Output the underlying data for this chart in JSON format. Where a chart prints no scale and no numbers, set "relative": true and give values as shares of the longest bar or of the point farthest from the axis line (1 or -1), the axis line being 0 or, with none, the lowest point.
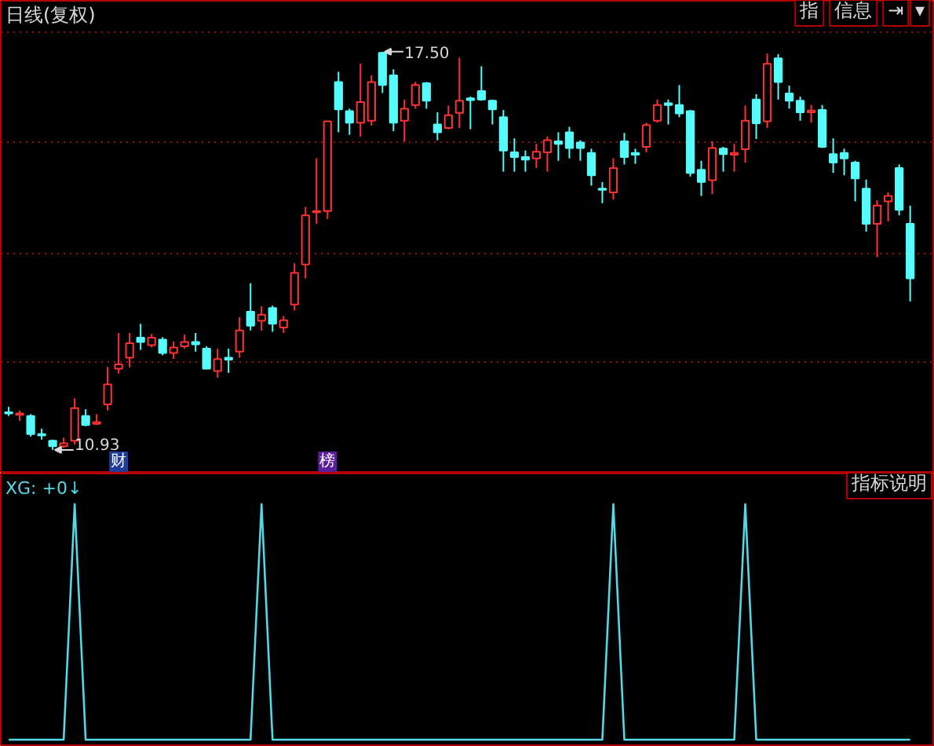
{
  "chart_data": [
    {
      "type": "candlestick",
      "title": "日线(复权)",
      "categories": [
        null,
        null,
        null,
        null,
        null,
        null,
        null,
        null,
        null,
        null,
        "财",
        null,
        null,
        null,
        null,
        null,
        null,
        null,
        null,
        null,
        null,
        null,
        null,
        null,
        null,
        null,
        null,
        null,
        null,
        "榜",
        null,
        null,
        null,
        null,
        null,
        null,
        null,
        null,
        null,
        null,
        null,
        null,
        null,
        null,
        null,
        null,
        null,
        null,
        null,
        null,
        null,
        null,
        null,
        null,
        null,
        null,
        null,
        null,
        null,
        null,
        null,
        null,
        null,
        null,
        null,
        null,
        null,
        null,
        null,
        null,
        null,
        null,
        null,
        null,
        null,
        null,
        null,
        null,
        null,
        null,
        null,
        null,
        null
      ],
      "ohlc": [
        [
          11.55,
          11.64,
          11.49,
          11.53
        ],
        [
          11.51,
          11.58,
          11.41,
          11.53
        ],
        [
          11.49,
          11.52,
          11.15,
          11.19
        ],
        [
          11.19,
          11.28,
          11.1,
          11.17
        ],
        [
          11.08,
          11.1,
          10.93,
          10.99
        ],
        [
          10.99,
          11.13,
          10.96,
          11.04
        ],
        [
          11.08,
          11.78,
          11.02,
          11.62
        ],
        [
          11.49,
          11.6,
          11.32,
          11.34
        ],
        [
          11.36,
          11.52,
          11.34,
          11.39
        ],
        [
          11.68,
          12.3,
          11.58,
          12.01
        ],
        [
          12.27,
          12.86,
          12.19,
          12.34
        ],
        [
          12.45,
          12.86,
          12.29,
          12.69
        ],
        [
          12.78,
          13.01,
          12.58,
          12.71
        ],
        [
          12.66,
          12.84,
          12.62,
          12.78
        ],
        [
          12.75,
          12.79,
          12.49,
          12.53
        ],
        [
          12.53,
          12.72,
          12.43,
          12.62
        ],
        [
          12.64,
          12.83,
          12.6,
          12.71
        ],
        [
          12.71,
          12.86,
          12.55,
          12.67
        ],
        [
          12.6,
          12.64,
          12.26,
          12.27
        ],
        [
          12.23,
          12.6,
          12.12,
          12.43
        ],
        [
          12.45,
          12.6,
          12.2,
          12.42
        ],
        [
          12.55,
          13.12,
          12.45,
          12.9
        ],
        [
          13.21,
          13.68,
          12.9,
          12.98
        ],
        [
          13.06,
          13.3,
          12.9,
          13.16
        ],
        [
          13.27,
          13.31,
          12.88,
          13.01
        ],
        [
          12.95,
          13.14,
          12.86,
          13.07
        ],
        [
          13.33,
          14.01,
          13.23,
          13.85
        ],
        [
          13.99,
          14.94,
          13.76,
          14.8
        ],
        [
          14.85,
          15.74,
          14.66,
          14.87
        ],
        [
          14.87,
          16.36,
          14.74,
          16.35
        ],
        [
          17.0,
          17.17,
          16.17,
          16.55
        ],
        [
          16.52,
          16.56,
          16.13,
          16.33
        ],
        [
          16.33,
          17.3,
          16.1,
          16.67
        ],
        [
          16.36,
          17.11,
          16.28,
          17.0
        ],
        [
          17.48,
          17.5,
          16.82,
          16.95
        ],
        [
          17.11,
          17.21,
          16.19,
          16.33
        ],
        [
          16.36,
          16.71,
          16.02,
          16.56
        ],
        [
          16.62,
          17.0,
          16.56,
          16.95
        ],
        [
          16.98,
          17.0,
          16.56,
          16.69
        ],
        [
          16.3,
          16.5,
          16.04,
          16.17
        ],
        [
          16.24,
          16.61,
          16.22,
          16.45
        ],
        [
          16.49,
          17.4,
          16.24,
          16.69
        ],
        [
          16.73,
          16.76,
          16.22,
          16.7
        ],
        [
          16.85,
          17.26,
          16.69,
          16.71
        ],
        [
          16.69,
          16.71,
          16.3,
          16.55
        ],
        [
          16.42,
          16.54,
          15.52,
          15.87
        ],
        [
          15.84,
          16.07,
          15.52,
          15.76
        ],
        [
          15.76,
          15.87,
          15.52,
          15.72
        ],
        [
          15.74,
          15.98,
          15.58,
          15.85
        ],
        [
          15.84,
          16.1,
          15.52,
          16.04
        ],
        [
          16.02,
          16.17,
          15.7,
          15.98
        ],
        [
          16.17,
          16.26,
          15.74,
          15.91
        ],
        [
          16.0,
          16.04,
          15.7,
          15.91
        ],
        [
          15.83,
          15.9,
          15.29,
          15.46
        ],
        [
          15.24,
          15.35,
          15.0,
          15.22
        ],
        [
          15.18,
          15.74,
          15.06,
          15.58
        ],
        [
          16.02,
          16.16,
          15.64,
          15.76
        ],
        [
          15.83,
          15.9,
          15.65,
          15.8
        ],
        [
          15.93,
          16.33,
          15.84,
          16.29
        ],
        [
          16.36,
          16.71,
          16.33,
          16.62
        ],
        [
          16.65,
          16.71,
          16.3,
          16.62
        ],
        [
          16.62,
          16.95,
          16.42,
          16.48
        ],
        [
          16.52,
          16.54,
          15.44,
          15.5
        ],
        [
          15.55,
          15.7,
          15.12,
          15.35
        ],
        [
          15.38,
          16.02,
          15.15,
          15.91
        ],
        [
          15.9,
          15.93,
          15.52,
          15.81
        ],
        [
          15.8,
          15.98,
          15.52,
          15.83
        ],
        [
          15.89,
          16.61,
          15.67,
          16.36
        ],
        [
          16.71,
          16.8,
          16.06,
          16.32
        ],
        [
          16.35,
          17.47,
          16.24,
          17.3
        ],
        [
          17.39,
          17.46,
          16.71,
          17.0
        ],
        [
          16.81,
          16.94,
          16.56,
          16.69
        ],
        [
          16.69,
          16.76,
          16.36,
          16.5
        ],
        [
          16.5,
          16.62,
          16.33,
          16.53
        ],
        [
          16.54,
          16.62,
          15.91,
          15.93
        ],
        [
          15.81,
          16.07,
          15.5,
          15.67
        ],
        [
          15.83,
          15.9,
          15.46,
          15.74
        ],
        [
          15.67,
          15.7,
          15.03,
          15.41
        ],
        [
          15.24,
          15.39,
          14.53,
          14.66
        ],
        [
          14.66,
          15.05,
          14.11,
          14.96
        ],
        [
          15.03,
          15.18,
          14.7,
          15.12
        ],
        [
          15.58,
          15.64,
          14.8,
          14.89
        ],
        [
          14.66,
          14.96,
          13.38,
          13.76
        ]
      ],
      "colors": [
        "#54fcfc",
        "#ff3232",
        "#54fcfc",
        "#54fcfc",
        "#54fcfc",
        "#ff3232",
        "#ff3232",
        "#54fcfc",
        "#ff3232",
        "#ff3232",
        "#ff3232",
        "#ff3232",
        "#54fcfc",
        "#ff3232",
        "#54fcfc",
        "#ff3232",
        "#ff3232",
        "#54fcfc",
        "#54fcfc",
        "#ff3232",
        "#54fcfc",
        "#ff3232",
        "#54fcfc",
        "#ff3232",
        "#54fcfc",
        "#ff3232",
        "#ff3232",
        "#ff3232",
        "#ff3232",
        "#ff3232",
        "#54fcfc",
        "#54fcfc",
        "#ff3232",
        "#ff3232",
        "#54fcfc",
        "#54fcfc",
        "#ff3232",
        "#ff3232",
        "#54fcfc",
        "#54fcfc",
        "#ff3232",
        "#ff3232",
        "#54fcfc",
        "#54fcfc",
        "#54fcfc",
        "#54fcfc",
        "#54fcfc",
        "#54fcfc",
        "#ff3232",
        "#ff3232",
        "#54fcfc",
        "#54fcfc",
        "#54fcfc",
        "#54fcfc",
        "#54fcfc",
        "#ff3232",
        "#54fcfc",
        "#54fcfc",
        "#ff3232",
        "#ff3232",
        "#54fcfc",
        "#54fcfc",
        "#54fcfc",
        "#54fcfc",
        "#ff3232",
        "#54fcfc",
        "#ff3232",
        "#ff3232",
        "#54fcfc",
        "#ff3232",
        "#54fcfc",
        "#54fcfc",
        "#54fcfc",
        "#ff3232",
        "#54fcfc",
        "#54fcfc",
        "#54fcfc",
        "#54fcfc",
        "#54fcfc",
        "#ff3232",
        "#ff3232",
        "#54fcfc",
        "#54fcfc"
      ],
      "value_labels": [
        null,
        null,
        null,
        null,
        "10.93",
        null,
        null,
        null,
        null,
        null,
        null,
        null,
        null,
        null,
        null,
        null,
        null,
        null,
        null,
        null,
        null,
        null,
        null,
        null,
        null,
        null,
        null,
        null,
        null,
        null,
        null,
        null,
        null,
        null,
        "17.50",
        null,
        null,
        null,
        null,
        null,
        null,
        null,
        null,
        null,
        null,
        null,
        null,
        null,
        null,
        null,
        null,
        null,
        null,
        null,
        null,
        null,
        null,
        null,
        null,
        null,
        null,
        null,
        null,
        null,
        null,
        null,
        null,
        null,
        null,
        null,
        null,
        null,
        null,
        null,
        null,
        null,
        null,
        null,
        null,
        null,
        null,
        null,
        null
      ],
      "ylim": [
        10.54,
        18.34
      ],
      "yticks": [
        {
          "value": 12.38,
          "label": null
        },
        {
          "value": 14.18,
          "label": null
        },
        {
          "value": 16.02,
          "label": null
        },
        {
          "value": 17.82,
          "label": null
        }
      ],
      "grid": "y",
      "tick_labels": "x",
      "annotations": [
        "指",
        "信息",
        "⇥",
        "▾"
      ]
    },
    {
      "type": "line",
      "title": "XG: +0↓",
      "relative": true,
      "tick_labels": false,
      "categories": [
        null,
        null,
        null,
        null,
        null,
        null,
        null,
        null,
        null,
        null,
        null,
        null,
        null,
        null,
        null,
        null,
        null,
        null,
        null,
        null,
        null,
        null,
        null,
        null,
        null,
        null,
        null,
        null,
        null,
        null,
        null,
        null,
        null,
        null,
        null,
        null,
        null,
        null,
        null,
        null,
        null,
        null,
        null,
        null,
        null,
        null,
        null,
        null,
        null,
        null,
        null,
        null,
        null,
        null,
        null,
        null,
        null,
        null,
        null,
        null,
        null,
        null,
        null,
        null,
        null,
        null,
        null,
        null,
        null,
        null,
        null,
        null,
        null,
        null,
        null,
        null,
        null,
        null,
        null,
        null,
        null,
        null,
        null
      ],
      "series": [
        {
          "color": "#54d8e8",
          "values": [
            0,
            0,
            0,
            0,
            0,
            0,
            1,
            0,
            0,
            0,
            0,
            0,
            0,
            0,
            0,
            0,
            0,
            0,
            0,
            0,
            0,
            0,
            0,
            1,
            0,
            0,
            0,
            0,
            0,
            0,
            0,
            0,
            0,
            0,
            0,
            0,
            0,
            0,
            0,
            0,
            0,
            0,
            0,
            0,
            0,
            0,
            0,
            0,
            0,
            0,
            0,
            0,
            0,
            0,
            0,
            1,
            0,
            0,
            0,
            0,
            0,
            0,
            0,
            0,
            0,
            0,
            0,
            1,
            0,
            0,
            0,
            0,
            0,
            0,
            0,
            0,
            0,
            0,
            0,
            0,
            0,
            0,
            0
          ]
        }
      ],
      "annotations": [
        "指标说明"
      ]
    }
  ]
}
